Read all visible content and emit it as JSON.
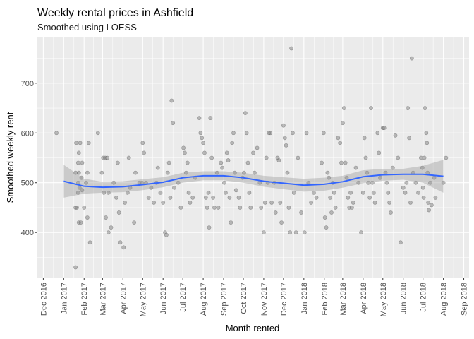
{
  "chart_data": {
    "type": "scatter",
    "title": "Weekly rental prices in Ashfield",
    "subtitle": "Smoothed using LOESS",
    "xlabel": "Month rented",
    "ylabel": "Smoothed weekly rent",
    "grid": true,
    "legend": "none",
    "xlim": [
      "2016-11-22",
      "2018-09-09"
    ],
    "ylim": [
      308,
      792
    ],
    "y_ticks": [
      400,
      500,
      600,
      700
    ],
    "y_tick_labels": [
      "400",
      "500",
      "600",
      "700"
    ],
    "x_ticks": [
      "2016-12-01",
      "2017-01-01",
      "2017-02-01",
      "2017-03-01",
      "2017-04-01",
      "2017-05-01",
      "2017-06-01",
      "2017-07-01",
      "2017-08-01",
      "2017-09-01",
      "2017-10-01",
      "2017-11-01",
      "2017-12-01",
      "2018-01-01",
      "2018-02-01",
      "2018-03-01",
      "2018-04-01",
      "2018-05-01",
      "2018-06-01",
      "2018-07-01",
      "2018-08-01",
      "2018-09-01"
    ],
    "x_tick_labels": [
      "Dec 2016",
      "Jan 2017",
      "Feb 2017",
      "Mar 2017",
      "Apr 2017",
      "May 2017",
      "Jun 2017",
      "Jul 2017",
      "Aug 2017",
      "Sep 2017",
      "Oct 2017",
      "Nov 2017",
      "Dec 2017",
      "Jan 2018",
      "Feb 2018",
      "Mar 2018",
      "Apr 2018",
      "May 2018",
      "Jun 2018",
      "Jul 2018",
      "Aug 2018",
      "Sep 2018"
    ],
    "points": [
      [
        "2016-12-21",
        600
      ],
      [
        "2017-01-20",
        580
      ],
      [
        "2017-01-24",
        560
      ],
      [
        "2017-01-26",
        580
      ],
      [
        "2017-01-23",
        540
      ],
      [
        "2017-01-29",
        540
      ],
      [
        "2017-01-19",
        520
      ],
      [
        "2017-01-24",
        520
      ],
      [
        "2017-01-19",
        450
      ],
      [
        "2017-01-21",
        450
      ],
      [
        "2017-01-24",
        420
      ],
      [
        "2017-01-27",
        420
      ],
      [
        "2017-01-19",
        330
      ],
      [
        "2017-01-23",
        480
      ],
      [
        "2017-01-25",
        490
      ],
      [
        "2017-01-29",
        485
      ],
      [
        "2017-01-23",
        500
      ],
      [
        "2017-01-28",
        510
      ],
      [
        "2017-02-08",
        580
      ],
      [
        "2017-02-04",
        500
      ],
      [
        "2017-02-06",
        520
      ],
      [
        "2017-02-01",
        450
      ],
      [
        "2017-02-06",
        430
      ],
      [
        "2017-02-10",
        380
      ],
      [
        "2017-02-22",
        600
      ],
      [
        "2017-03-02",
        550
      ],
      [
        "2017-03-05",
        550
      ],
      [
        "2017-03-08",
        550
      ],
      [
        "2017-02-28",
        520
      ],
      [
        "2017-03-03",
        480
      ],
      [
        "2017-03-10",
        480
      ],
      [
        "2017-03-06",
        430
      ],
      [
        "2017-03-10",
        400
      ],
      [
        "2017-03-14",
        410
      ],
      [
        "2017-03-18",
        500
      ],
      [
        "2017-03-24",
        540
      ],
      [
        "2017-03-22",
        470
      ],
      [
        "2017-03-26",
        440
      ],
      [
        "2017-03-28",
        380
      ],
      [
        "2017-04-02",
        370
      ],
      [
        "2017-04-04",
        460
      ],
      [
        "2017-04-08",
        480
      ],
      [
        "2017-04-10",
        550
      ],
      [
        "2017-04-12",
        490
      ],
      [
        "2017-04-20",
        520
      ],
      [
        "2017-04-18",
        420
      ],
      [
        "2017-04-26",
        500
      ],
      [
        "2017-04-30",
        500
      ],
      [
        "2017-05-03",
        560
      ],
      [
        "2017-05-01",
        580
      ],
      [
        "2017-05-06",
        500
      ],
      [
        "2017-05-10",
        470
      ],
      [
        "2017-05-14",
        490
      ],
      [
        "2017-05-18",
        460
      ],
      [
        "2017-05-22",
        500
      ],
      [
        "2017-05-24",
        530
      ],
      [
        "2017-05-28",
        480
      ],
      [
        "2017-06-01",
        460
      ],
      [
        "2017-06-04",
        400
      ],
      [
        "2017-06-06",
        395
      ],
      [
        "2017-06-08",
        520
      ],
      [
        "2017-06-10",
        540
      ],
      [
        "2017-06-12",
        470
      ],
      [
        "2017-06-14",
        665
      ],
      [
        "2017-06-16",
        620
      ],
      [
        "2017-06-18",
        490
      ],
      [
        "2017-06-24",
        500
      ],
      [
        "2017-06-28",
        450
      ],
      [
        "2017-07-02",
        570
      ],
      [
        "2017-07-04",
        560
      ],
      [
        "2017-07-06",
        520
      ],
      [
        "2017-07-08",
        540
      ],
      [
        "2017-07-10",
        480
      ],
      [
        "2017-07-12",
        460
      ],
      [
        "2017-07-16",
        470
      ],
      [
        "2017-07-20",
        510
      ],
      [
        "2017-07-26",
        630
      ],
      [
        "2017-07-28",
        600
      ],
      [
        "2017-07-30",
        590
      ],
      [
        "2017-08-01",
        580
      ],
      [
        "2017-08-03",
        560
      ],
      [
        "2017-08-05",
        470
      ],
      [
        "2017-08-07",
        450
      ],
      [
        "2017-08-09",
        480
      ],
      [
        "2017-08-10",
        410
      ],
      [
        "2017-08-12",
        630
      ],
      [
        "2017-08-14",
        550
      ],
      [
        "2017-08-16",
        470
      ],
      [
        "2017-08-18",
        450
      ],
      [
        "2017-08-22",
        520
      ],
      [
        "2017-08-24",
        450
      ],
      [
        "2017-08-28",
        540
      ],
      [
        "2017-08-30",
        530
      ],
      [
        "2017-09-02",
        500
      ],
      [
        "2017-09-04",
        480
      ],
      [
        "2017-09-06",
        560
      ],
      [
        "2017-09-08",
        545
      ],
      [
        "2017-09-10",
        470
      ],
      [
        "2017-09-12",
        420
      ],
      [
        "2017-09-14",
        580
      ],
      [
        "2017-09-16",
        600
      ],
      [
        "2017-09-18",
        520
      ],
      [
        "2017-09-20",
        485
      ],
      [
        "2017-09-24",
        470
      ],
      [
        "2017-09-26",
        450
      ],
      [
        "2017-09-30",
        510
      ],
      [
        "2017-10-02",
        520
      ],
      [
        "2017-10-04",
        640
      ],
      [
        "2017-10-06",
        600
      ],
      [
        "2017-10-08",
        540
      ],
      [
        "2017-10-10",
        480
      ],
      [
        "2017-10-12",
        450
      ],
      [
        "2017-10-16",
        560
      ],
      [
        "2017-10-18",
        520
      ],
      [
        "2017-10-22",
        570
      ],
      [
        "2017-10-26",
        500
      ],
      [
        "2017-10-28",
        450
      ],
      [
        "2017-11-01",
        400
      ],
      [
        "2017-11-03",
        460
      ],
      [
        "2017-11-05",
        550
      ],
      [
        "2017-11-07",
        500
      ],
      [
        "2017-11-09",
        600
      ],
      [
        "2017-11-11",
        600
      ],
      [
        "2017-11-13",
        460
      ],
      [
        "2017-11-17",
        500
      ],
      [
        "2017-11-19",
        440
      ],
      [
        "2017-11-22",
        550
      ],
      [
        "2017-11-24",
        545
      ],
      [
        "2017-11-26",
        460
      ],
      [
        "2017-11-28",
        420
      ],
      [
        "2017-12-01",
        615
      ],
      [
        "2017-12-03",
        590
      ],
      [
        "2017-12-05",
        575
      ],
      [
        "2017-12-07",
        520
      ],
      [
        "2017-12-09",
        450
      ],
      [
        "2017-12-11",
        400
      ],
      [
        "2017-12-13",
        770
      ],
      [
        "2017-12-15",
        600
      ],
      [
        "2017-12-17",
        480
      ],
      [
        "2017-12-20",
        400
      ],
      [
        "2017-12-23",
        550
      ],
      [
        "2017-12-28",
        440
      ],
      [
        "2018-01-02",
        400
      ],
      [
        "2018-01-05",
        600
      ],
      [
        "2018-01-08",
        500
      ],
      [
        "2018-01-12",
        460
      ],
      [
        "2018-01-16",
        480
      ],
      [
        "2018-01-20",
        470
      ],
      [
        "2018-01-28",
        540
      ],
      [
        "2018-01-31",
        600
      ],
      [
        "2018-02-02",
        430
      ],
      [
        "2018-02-04",
        410
      ],
      [
        "2018-02-06",
        520
      ],
      [
        "2018-02-08",
        510
      ],
      [
        "2018-02-10",
        470
      ],
      [
        "2018-02-12",
        440
      ],
      [
        "2018-02-14",
        500
      ],
      [
        "2018-02-16",
        480
      ],
      [
        "2018-02-18",
        450
      ],
      [
        "2018-02-22",
        590
      ],
      [
        "2018-02-25",
        580
      ],
      [
        "2018-02-27",
        540
      ],
      [
        "2018-03-01",
        620
      ],
      [
        "2018-03-03",
        650
      ],
      [
        "2018-03-05",
        540
      ],
      [
        "2018-03-07",
        510
      ],
      [
        "2018-03-09",
        470
      ],
      [
        "2018-03-11",
        450
      ],
      [
        "2018-03-13",
        480
      ],
      [
        "2018-03-15",
        450
      ],
      [
        "2018-03-17",
        460
      ],
      [
        "2018-03-21",
        530
      ],
      [
        "2018-03-25",
        500
      ],
      [
        "2018-03-29",
        400
      ],
      [
        "2018-04-01",
        480
      ],
      [
        "2018-04-03",
        590
      ],
      [
        "2018-04-05",
        550
      ],
      [
        "2018-04-07",
        520
      ],
      [
        "2018-04-09",
        500
      ],
      [
        "2018-04-11",
        470
      ],
      [
        "2018-04-13",
        650
      ],
      [
        "2018-04-15",
        500
      ],
      [
        "2018-04-17",
        480
      ],
      [
        "2018-04-19",
        460
      ],
      [
        "2018-04-23",
        600
      ],
      [
        "2018-04-25",
        560
      ],
      [
        "2018-04-27",
        510
      ],
      [
        "2018-05-01",
        610
      ],
      [
        "2018-05-03",
        610
      ],
      [
        "2018-05-05",
        520
      ],
      [
        "2018-05-07",
        500
      ],
      [
        "2018-05-09",
        480
      ],
      [
        "2018-05-11",
        460
      ],
      [
        "2018-05-13",
        440
      ],
      [
        "2018-05-16",
        530
      ],
      [
        "2018-05-20",
        595
      ],
      [
        "2018-05-24",
        550
      ],
      [
        "2018-05-28",
        380
      ],
      [
        "2018-06-01",
        490
      ],
      [
        "2018-06-04",
        480
      ],
      [
        "2018-06-06",
        500
      ],
      [
        "2018-06-08",
        650
      ],
      [
        "2018-06-10",
        590
      ],
      [
        "2018-06-12",
        460
      ],
      [
        "2018-06-14",
        750
      ],
      [
        "2018-06-16",
        520
      ],
      [
        "2018-06-20",
        500
      ],
      [
        "2018-06-24",
        480
      ],
      [
        "2018-06-28",
        550
      ],
      [
        "2018-06-30",
        530
      ],
      [
        "2018-07-01",
        490
      ],
      [
        "2018-07-02",
        470
      ],
      [
        "2018-07-03",
        550
      ],
      [
        "2018-07-04",
        650
      ],
      [
        "2018-07-06",
        600
      ],
      [
        "2018-07-07",
        580
      ],
      [
        "2018-07-08",
        520
      ],
      [
        "2018-07-09",
        460
      ],
      [
        "2018-07-10",
        445
      ],
      [
        "2018-07-12",
        500
      ],
      [
        "2018-07-14",
        455
      ],
      [
        "2018-07-18",
        510
      ],
      [
        "2018-07-20",
        470
      ],
      [
        "2018-08-01",
        500
      ],
      [
        "2018-08-05",
        550
      ]
    ],
    "smooth": {
      "method": "loess",
      "x": [
        "2017-01-01",
        "2017-02-01",
        "2017-03-01",
        "2017-04-01",
        "2017-05-01",
        "2017-06-01",
        "2017-07-01",
        "2017-08-01",
        "2017-09-01",
        "2017-10-01",
        "2017-11-01",
        "2017-12-01",
        "2018-01-01",
        "2018-02-01",
        "2018-03-01",
        "2018-04-01",
        "2018-05-01",
        "2018-06-01",
        "2018-07-01",
        "2018-08-01"
      ],
      "y": [
        503,
        493,
        491,
        492,
        496,
        501,
        510,
        514,
        514,
        510,
        503,
        499,
        495,
        497,
        502,
        512,
        516,
        517,
        517,
        513
      ],
      "lower": [
        470,
        478,
        480,
        481,
        485,
        491,
        500,
        505,
        505,
        500,
        492,
        487,
        482,
        484,
        490,
        499,
        504,
        506,
        500,
        480
      ],
      "upper": [
        536,
        508,
        502,
        503,
        507,
        511,
        520,
        523,
        523,
        520,
        514,
        511,
        508,
        510,
        514,
        525,
        528,
        528,
        534,
        546
      ]
    },
    "colors": {
      "panel_bg": "#ebebeb",
      "grid": "#ffffff",
      "point_fill": "#7f7f7f",
      "line": "#3366ff",
      "ribbon": "#999999"
    }
  }
}
